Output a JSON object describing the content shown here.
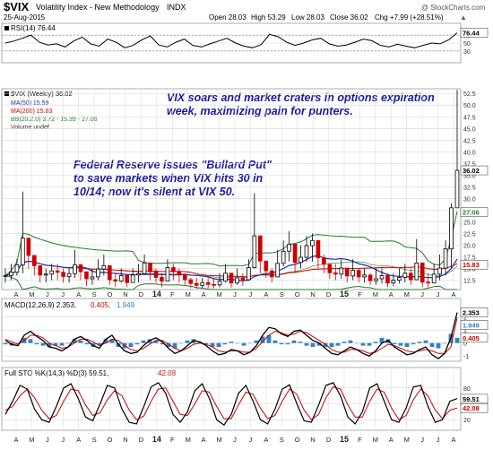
{
  "header": {
    "symbol": "$VIX",
    "name": "Volatility Index - New Methodology",
    "exchange": "INDX",
    "date": "25-Aug-2015",
    "open": "Open 28.03",
    "high": "High 53.29",
    "low": "Low 28.03",
    "close": "Close 36.02",
    "chg": "Chg +7.99 (+28.51%)",
    "chg_arrow": "▲",
    "watermark": "@ StockCharts.com"
  },
  "colors": {
    "price_up": "#000000",
    "price_down": "#cc0000",
    "ma50": "#1f2fa8",
    "ma200": "#cc0000",
    "bollinger": "#2a7a2a",
    "rsi": "#000000",
    "macd_line": "#000000",
    "macd_signal": "#cc0000",
    "macd_hist": "#2f83c2",
    "sto_k": "#000000",
    "sto_d": "#cc0000",
    "annotation": "#1a1aa0",
    "grid": "#d8d8d8"
  },
  "annotations": {
    "top": [
      "VIX soars and market craters in options expiration",
      "week, maximizing pain for punters."
    ],
    "left": [
      "Federal Reserve issues \"Bullard Put\"",
      "to save markets when VIX hits 30 in",
      "10/14; now it's silent at VIX 50."
    ]
  },
  "chart_data": [
    {
      "panel": "rsi",
      "type": "line",
      "legend": "RSI(14) 76.44",
      "yticks": [
        "70",
        "50",
        "30"
      ],
      "ylim": [
        0,
        100
      ],
      "current": "76.44",
      "values": [
        50,
        55,
        62,
        70,
        52,
        45,
        48,
        40,
        55,
        65,
        48,
        42,
        60,
        52,
        38,
        44,
        58,
        68,
        45,
        40,
        52,
        60,
        44,
        40,
        48,
        55,
        62,
        50,
        42,
        38,
        46,
        72,
        66,
        52,
        44,
        50,
        58,
        62,
        48,
        42,
        45,
        52,
        60,
        56,
        44,
        40,
        47,
        42,
        38,
        44,
        50,
        48,
        58,
        76
      ]
    },
    {
      "panel": "price",
      "type": "candlestick",
      "legend": [
        "$VIX (Weekly) 36.02",
        "MA(50) 15.59",
        "MA(200) 15.83",
        "BB(20,2.0) 3.72 - 15.39 - 27.06",
        "Volume undef"
      ],
      "yticks": [
        "52.5",
        "50.0",
        "47.5",
        "45.0",
        "42.5",
        "40.0",
        "37.5",
        "35.0",
        "32.5",
        "30.0",
        "27.5",
        "25.0",
        "22.5",
        "20.0",
        "17.5",
        "15.0",
        "12.5"
      ],
      "ylim": [
        10.5,
        53.5
      ],
      "ma50_value": "15.59",
      "ma200_value": "15.83",
      "bb_upper_value": "27.06",
      "close_value": "36.02",
      "closes": [
        13.5,
        14.2,
        15.8,
        21.5,
        17.8,
        15.6,
        13.6,
        13.8,
        14.5,
        14.2,
        13.3,
        13.9,
        15.8,
        14.3,
        12.8,
        13.2,
        14.9,
        15.6,
        12.6,
        12.3,
        13.5,
        12.0,
        13.6,
        13.9,
        16.2,
        14.3,
        13.1,
        12.3,
        15.2,
        14.3,
        13.6,
        12.6,
        11.8,
        11.4,
        12.0,
        11.6,
        11.5,
        12.3,
        14.0,
        11.9,
        13.0,
        12.6,
        15.2,
        22.0,
        16.6,
        14.5,
        13.2,
        16.1,
        18.7,
        20.2,
        16.3,
        17.4,
        19.9,
        21.0,
        17.3,
        15.9,
        14.1,
        13.8,
        15.1,
        13.4,
        14.6,
        13.2,
        13.6,
        12.4,
        12.8,
        13.5,
        11.9,
        12.5,
        13.1,
        14.0,
        12.6,
        16.2,
        12.1,
        11.9,
        13.8,
        15.1,
        19.2,
        28.0,
        36.02
      ],
      "highs": [
        15,
        16,
        17,
        31.5,
        21,
        17,
        15,
        15,
        16,
        16,
        15,
        15,
        19,
        16,
        14,
        15,
        17,
        18,
        14,
        14,
        15,
        13,
        15,
        16,
        18,
        16,
        15,
        14,
        17,
        16,
        15,
        14,
        13,
        13,
        13,
        13,
        13,
        14,
        16,
        13,
        15,
        14,
        17,
        31.1,
        21,
        16,
        15,
        19,
        21,
        23,
        19,
        20,
        22,
        22.5,
        20,
        18,
        16,
        16,
        17,
        15,
        17,
        15,
        15,
        14,
        15,
        15,
        14,
        14,
        15,
        16,
        15,
        21.3,
        14,
        14,
        16,
        18,
        21,
        29,
        53.29
      ],
      "lows": [
        12,
        12.5,
        13.5,
        14,
        15,
        13.5,
        12,
        12,
        12.5,
        12.5,
        12,
        12,
        13,
        12.5,
        11.2,
        11.5,
        12.5,
        13.5,
        11.5,
        11,
        12,
        11,
        12,
        12,
        14,
        12.5,
        12,
        11,
        12.5,
        12.5,
        12,
        11.5,
        10.8,
        10.7,
        10.9,
        10.8,
        10.8,
        11,
        12,
        10.9,
        11.5,
        11.3,
        12.5,
        15,
        14,
        13,
        12,
        13.5,
        15.5,
        16.5,
        14,
        15,
        16.5,
        16.5,
        15,
        14,
        12.8,
        12.5,
        12.8,
        12,
        12.5,
        12,
        12,
        11.5,
        11.5,
        11.8,
        11,
        11.2,
        11.8,
        12,
        11.5,
        12.5,
        11,
        11,
        12,
        12.5,
        13.5,
        15,
        28.03
      ]
    },
    {
      "panel": "macd",
      "type": "line",
      "legend": [
        "MACD(12,26,9) 2.353,",
        "0.405,",
        "1.949"
      ],
      "yticks": [
        "2",
        "1",
        "0",
        "-1"
      ],
      "ylim": [
        -1.4,
        2.6
      ],
      "macd_value": "2.353",
      "signal_value": "1.949",
      "histogram_value": "0.405",
      "macd_series": [
        0.2,
        -0.1,
        -0.2,
        0.6,
        0.9,
        0.5,
        0.2,
        -0.3,
        -0.4,
        -0.6,
        -0.3,
        0.3,
        0.5,
        0.2,
        -0.2,
        -0.4,
        0.3,
        0.6,
        -0.1,
        -0.6,
        -0.8,
        -0.7,
        -0.2,
        0.2,
        0.4,
        0.1,
        -0.4,
        -0.8,
        -0.6,
        -0.2,
        0.2,
        0.1,
        -0.2,
        -0.6,
        -0.9,
        -0.8,
        -0.5,
        -0.6,
        -0.9,
        -0.7,
        -0.2,
        0.6,
        1.2,
        1.1,
        0.7,
        0.5,
        0.9,
        1.0,
        0.6,
        0.2,
        0.0,
        -0.4,
        -0.8,
        -0.9,
        -0.6,
        -0.3,
        -0.5,
        -0.8,
        -1.0,
        -0.6,
        0.0,
        0.2,
        -0.3,
        -0.6,
        -0.9,
        -0.8,
        -0.5,
        -0.3,
        -0.9,
        -1.2,
        -0.8,
        0.4,
        2.35
      ],
      "signal_series": [
        0.3,
        0.1,
        -0.1,
        0.2,
        0.6,
        0.6,
        0.4,
        0.0,
        -0.2,
        -0.4,
        -0.3,
        0.0,
        0.3,
        0.3,
        0.1,
        -0.2,
        0.0,
        0.3,
        0.2,
        -0.2,
        -0.5,
        -0.6,
        -0.4,
        -0.1,
        0.2,
        0.2,
        -0.1,
        -0.4,
        -0.6,
        -0.4,
        -0.1,
        0.0,
        -0.1,
        -0.3,
        -0.6,
        -0.7,
        -0.6,
        -0.6,
        -0.7,
        -0.7,
        -0.4,
        0.1,
        0.6,
        0.9,
        0.8,
        0.6,
        0.7,
        0.9,
        0.8,
        0.5,
        0.2,
        -0.1,
        -0.5,
        -0.7,
        -0.7,
        -0.5,
        -0.5,
        -0.6,
        -0.8,
        -0.7,
        -0.4,
        -0.1,
        -0.2,
        -0.4,
        -0.6,
        -0.7,
        -0.6,
        -0.5,
        -0.6,
        -0.8,
        -0.8,
        -0.3,
        1.95
      ]
    },
    {
      "panel": "stochastic",
      "type": "line",
      "legend": [
        "Full STO %K(14,3) %D(3) 59.51,",
        "42.08"
      ],
      "yticks": [
        "80",
        "50",
        "20"
      ],
      "ylim": [
        0,
        100
      ],
      "k_value": "59.51",
      "d_value": "42.08",
      "k_series": [
        30,
        55,
        85,
        78,
        40,
        20,
        15,
        45,
        80,
        88,
        60,
        25,
        18,
        50,
        85,
        80,
        40,
        15,
        12,
        45,
        82,
        90,
        70,
        30,
        15,
        35,
        75,
        88,
        60,
        20,
        10,
        30,
        70,
        85,
        55,
        20,
        12,
        40,
        78,
        86,
        50,
        18,
        15,
        48,
        85,
        90,
        65,
        25,
        12,
        35,
        80,
        88,
        55,
        20,
        15,
        42,
        82,
        85,
        45,
        15,
        20,
        55,
        60
      ],
      "d_series": [
        38,
        45,
        65,
        78,
        62,
        38,
        22,
        28,
        55,
        78,
        75,
        48,
        28,
        33,
        58,
        75,
        65,
        38,
        20,
        27,
        55,
        78,
        80,
        55,
        30,
        28,
        50,
        75,
        72,
        45,
        22,
        22,
        48,
        72,
        68,
        42,
        22,
        28,
        55,
        78,
        68,
        38,
        20,
        30,
        62,
        82,
        78,
        48,
        25,
        25,
        55,
        78,
        72,
        42,
        20,
        28,
        58,
        78,
        65,
        38,
        22,
        38,
        42
      ]
    }
  ],
  "xaxis": {
    "labels": [
      "A",
      "M",
      "J",
      "J",
      "A",
      "S",
      "O",
      "N",
      "D",
      "14",
      "F",
      "M",
      "A",
      "M",
      "J",
      "J",
      "A",
      "S",
      "O",
      "N",
      "D",
      "15",
      "F",
      "M",
      "A",
      "M",
      "J",
      "J",
      "A"
    ],
    "year_labels": [
      "14",
      "15"
    ]
  }
}
